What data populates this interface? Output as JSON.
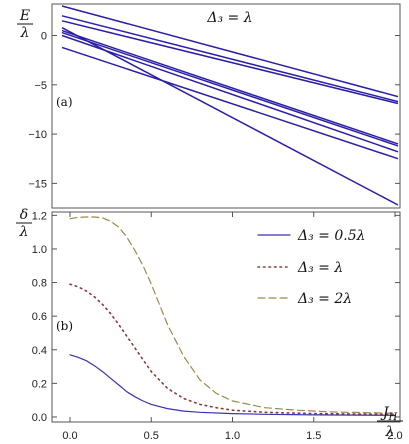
{
  "chart_data": [
    {
      "type": "line",
      "panel": "(a)",
      "annotation": "Δ₃ = λ",
      "ylabel": {
        "num": "E",
        "den": "λ"
      },
      "xlim": [
        0,
        2.0
      ],
      "ylim": [
        -17.5,
        3.2
      ],
      "yticks": [
        0,
        -5,
        -10,
        -15
      ],
      "ytick_labels": [
        "0",
        "−5",
        "−10",
        "−15"
      ],
      "color": "#2b1fa8",
      "series": [
        {
          "x": [
            0,
            2.0
          ],
          "y": [
            3.0,
            -6.2
          ]
        },
        {
          "x": [
            0,
            2.0
          ],
          "y": [
            2.0,
            -6.7
          ]
        },
        {
          "x": [
            0,
            2.0
          ],
          "y": [
            1.5,
            -6.9
          ]
        },
        {
          "x": [
            0,
            2.0
          ],
          "y": [
            0.5,
            -11.0
          ]
        },
        {
          "x": [
            0,
            2.0
          ],
          "y": [
            0.3,
            -11.2
          ]
        },
        {
          "x": [
            0,
            2.0
          ],
          "y": [
            0.0,
            -11.8
          ]
        },
        {
          "x": [
            0,
            2.0
          ],
          "y": [
            -1.2,
            -12.5
          ]
        },
        {
          "x": [
            0,
            2.0
          ],
          "y": [
            0.8,
            -17.2
          ]
        }
      ]
    },
    {
      "type": "line",
      "panel": "(b)",
      "ylabel": {
        "num": "δ",
        "den": "λ"
      },
      "xlabel": {
        "num": "J_H",
        "den": "λ"
      },
      "xlim": [
        0,
        2.0
      ],
      "ylim": [
        -0.03,
        1.22
      ],
      "xticks": [
        0.0,
        0.5,
        1.0,
        1.5,
        2.0
      ],
      "xtick_labels": [
        "0.0",
        "0.5",
        "1.0",
        "1.5",
        "2.0"
      ],
      "yticks": [
        0.0,
        0.2,
        0.4,
        0.6,
        0.8,
        1.0,
        1.2
      ],
      "ytick_labels": [
        "0.0",
        "0.2",
        "0.4",
        "0.6",
        "0.8",
        "1.0",
        "1.2"
      ],
      "legend_position": "top-right",
      "series": [
        {
          "name": "Δ₃ = 0.5λ",
          "style": "solid",
          "color": "#3a32b0",
          "x": [
            0,
            0.05,
            0.1,
            0.15,
            0.2,
            0.25,
            0.3,
            0.35,
            0.4,
            0.45,
            0.5,
            0.6,
            0.7,
            0.8,
            1.0,
            1.2,
            1.5,
            2.0
          ],
          "y": [
            0.37,
            0.355,
            0.335,
            0.305,
            0.27,
            0.23,
            0.19,
            0.15,
            0.12,
            0.095,
            0.075,
            0.05,
            0.035,
            0.028,
            0.02,
            0.016,
            0.012,
            0.01
          ]
        },
        {
          "name": "Δ₃ = λ",
          "style": "dotted",
          "color": "#8a3a3a",
          "x": [
            0,
            0.05,
            0.1,
            0.15,
            0.2,
            0.25,
            0.3,
            0.35,
            0.4,
            0.45,
            0.5,
            0.6,
            0.7,
            0.8,
            0.9,
            1.0,
            1.2,
            1.5,
            2.0
          ],
          "y": [
            0.79,
            0.775,
            0.75,
            0.715,
            0.67,
            0.615,
            0.55,
            0.48,
            0.41,
            0.34,
            0.27,
            0.17,
            0.11,
            0.075,
            0.055,
            0.04,
            0.028,
            0.02,
            0.015
          ]
        },
        {
          "name": "Δ₃ = 2λ",
          "style": "dashed",
          "color": "#9a8a4a",
          "x": [
            0,
            0.05,
            0.1,
            0.15,
            0.2,
            0.25,
            0.3,
            0.35,
            0.4,
            0.45,
            0.5,
            0.55,
            0.6,
            0.7,
            0.8,
            0.9,
            1.0,
            1.2,
            1.4,
            1.6,
            2.0
          ],
          "y": [
            1.18,
            1.188,
            1.19,
            1.19,
            1.185,
            1.165,
            1.13,
            1.07,
            0.99,
            0.9,
            0.79,
            0.67,
            0.55,
            0.36,
            0.22,
            0.14,
            0.095,
            0.055,
            0.04,
            0.03,
            0.022
          ]
        }
      ]
    }
  ]
}
